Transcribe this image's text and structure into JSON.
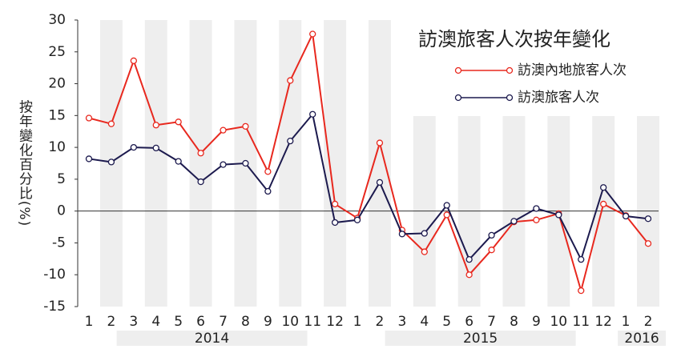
{
  "chart_data": {
    "type": "line",
    "title": "訪澳旅客人次按年變化",
    "y_label": "按年變化百分比(%)",
    "categories": [
      "1",
      "2",
      "3",
      "4",
      "5",
      "6",
      "7",
      "8",
      "9",
      "10",
      "11",
      "12",
      "1",
      "2",
      "3",
      "4",
      "5",
      "6",
      "7",
      "8",
      "9",
      "10",
      "11",
      "12",
      "1",
      "2"
    ],
    "year_labels": [
      "2014",
      "2015",
      "2016"
    ],
    "series": [
      {
        "name": "訪澳內地旅客人次",
        "color": "#e8281e",
        "values": [
          14.6,
          13.7,
          23.6,
          13.5,
          14.0,
          9.1,
          12.7,
          13.3,
          6.2,
          20.5,
          27.8,
          1.1,
          -1.1,
          10.7,
          -3.0,
          -6.4,
          -0.6,
          -10.0,
          -6.1,
          -1.7,
          -1.4,
          -0.4,
          -12.5,
          1.1,
          -0.7,
          -5.1
        ]
      },
      {
        "name": "訪澳旅客人次",
        "color": "#1c1a4e",
        "values": [
          8.2,
          7.7,
          10.0,
          9.9,
          7.8,
          4.6,
          7.3,
          7.5,
          3.1,
          11.0,
          15.2,
          -1.8,
          -1.4,
          4.5,
          -3.6,
          -3.5,
          0.9,
          -7.6,
          -3.8,
          -1.6,
          0.4,
          -0.6,
          -7.6,
          3.7,
          -0.8,
          -1.2
        ]
      }
    ],
    "ylim": [
      -15,
      30
    ],
    "yticks": [
      -15,
      -10,
      -5,
      0,
      5,
      10,
      15,
      20,
      25,
      30
    ],
    "grid": false,
    "legend": "upper right"
  }
}
